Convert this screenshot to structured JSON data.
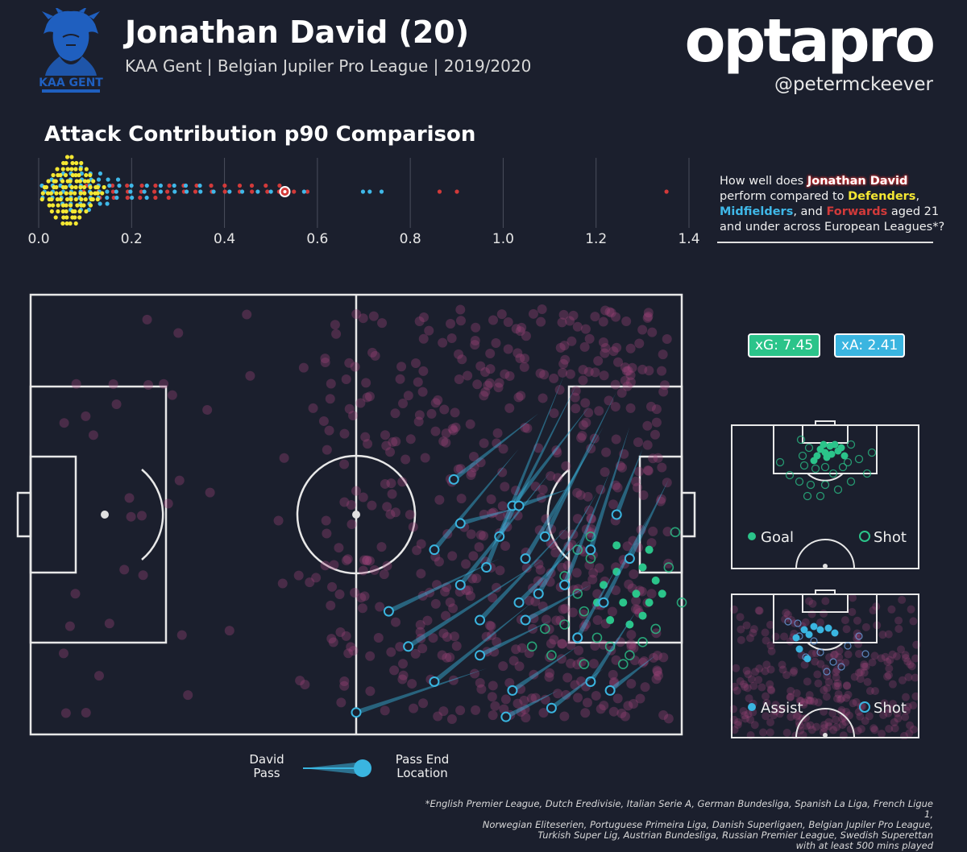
{
  "header": {
    "title": "Jonathan David (20)",
    "subtitle": "KAA Gent  |  Belgian Jupiler Pro League  |  2019/2020",
    "brand": "optapro",
    "handle": "@petermckeever",
    "badge_text": "KAA GENT"
  },
  "section_title": "Attack Contribution p90 Comparison",
  "question": {
    "p1": "How well does ",
    "player": "Jonathan David",
    "p2": " perform compared to ",
    "def": "Defenders",
    "p3": ", ",
    "mid": "Midfielders",
    "p4": ", and ",
    "fwd": "Forwards",
    "p5": "  aged 21 and under across European Leagues*?"
  },
  "stats": {
    "xg": "xG: 7.45",
    "xa": "xA: 2.41"
  },
  "shot_legend": {
    "goal": "Goal",
    "shot": "Shot"
  },
  "assist_legend": {
    "assist": "Assist",
    "shot": "Shot"
  },
  "pass_legend": {
    "left_line1": "David",
    "left_line2": "Pass",
    "right_line1": "Pass End",
    "right_line2": "Location"
  },
  "footnote": [
    "*English Premier League, Dutch Eredivisie, Italian Serie A, German Bundesliga, Spanish La Liga, French Ligue 1,",
    "Norwegian Eliteserien, Portuguese Primeira Liga, Danish Superligaen, Belgian Jupiler Pro League,",
    "Turkish Super Lig, Austrian Bundesliga, Russian Premier League, Swedish Superettan",
    "with at least 500 mins played"
  ],
  "colors": {
    "background": "#1b1f2d",
    "defender": "#f4e733",
    "midfielder": "#3fb8e8",
    "forward": "#d23a3a",
    "goal": "#2bc48a",
    "pass": "#3ab5e0",
    "touch": "#a0457a"
  },
  "chart_data": [
    {
      "type": "scatter",
      "name": "Attack Contribution p90 Comparison",
      "xlim": [
        0,
        1.4
      ],
      "ticks": [
        "0.0",
        "0.2",
        "0.4",
        "0.6",
        "0.8",
        "1.0",
        "1.2",
        "1.4"
      ],
      "tick_values": [
        0,
        0.2,
        0.4,
        0.6,
        0.8,
        1.0,
        1.2,
        1.4
      ],
      "grid": true,
      "series": [
        {
          "name": "Defenders",
          "x": [
            0.01,
            0.02,
            0.03,
            0.04,
            0.05,
            0.06,
            0.07,
            0.08,
            0.09,
            0.1,
            0.11,
            0.12,
            0.13,
            0.14
          ],
          "count": [
            3,
            5,
            7,
            9,
            11,
            12,
            12,
            11,
            10,
            8,
            6,
            4,
            3,
            2
          ]
        },
        {
          "name": "Midfielders",
          "x": [
            0.01,
            0.03,
            0.05,
            0.07,
            0.09,
            0.11,
            0.13,
            0.15,
            0.17,
            0.2,
            0.23,
            0.26,
            0.29,
            0.32,
            0.35,
            0.38,
            0.41,
            0.44,
            0.47,
            0.5,
            0.57,
            0.7,
            0.71,
            0.74
          ],
          "count": [
            3,
            4,
            6,
            7,
            8,
            7,
            6,
            5,
            4,
            3,
            3,
            2,
            2,
            2,
            2,
            1,
            1,
            1,
            1,
            1,
            1,
            1,
            1,
            1
          ]
        },
        {
          "name": "Forwards",
          "x": [
            0.1,
            0.13,
            0.16,
            0.19,
            0.22,
            0.25,
            0.28,
            0.31,
            0.34,
            0.37,
            0.4,
            0.43,
            0.46,
            0.49,
            0.52,
            0.55,
            0.58,
            0.86,
            0.9,
            1.35
          ],
          "count": [
            2,
            3,
            3,
            3,
            3,
            3,
            3,
            2,
            2,
            2,
            2,
            2,
            2,
            2,
            2,
            1,
            1,
            1,
            1,
            1
          ]
        },
        {
          "name": "Jonathan David",
          "x": [
            0.53
          ]
        }
      ]
    },
    {
      "type": "scatter",
      "name": "Touches and passes",
      "pitch": {
        "length": 100,
        "width": 100
      },
      "passes": [
        [
          75,
          35,
          62,
          58
        ],
        [
          78,
          27,
          65,
          42
        ],
        [
          82,
          18,
          70,
          62
        ],
        [
          84,
          20,
          72,
          55
        ],
        [
          86,
          25,
          74,
          48
        ],
        [
          80,
          40,
          66,
          66
        ],
        [
          88,
          30,
          76,
          60
        ],
        [
          90,
          22,
          79,
          55
        ],
        [
          79,
          60,
          58,
          80
        ],
        [
          83,
          52,
          69,
          74
        ],
        [
          85,
          55,
          75,
          70
        ],
        [
          87,
          45,
          78,
          68
        ],
        [
          89,
          40,
          82,
          66
        ],
        [
          92,
          30,
          86,
          58
        ],
        [
          94,
          35,
          90,
          50
        ],
        [
          77,
          70,
          62,
          88
        ],
        [
          95,
          50,
          88,
          70
        ],
        [
          98,
          42,
          92,
          60
        ],
        [
          72,
          60,
          55,
          72
        ],
        [
          70,
          85,
          50,
          95
        ],
        [
          86,
          66,
          76,
          74
        ],
        [
          80,
          74,
          69,
          82
        ],
        [
          84,
          80,
          74,
          90
        ],
        [
          90,
          62,
          84,
          78
        ],
        [
          93,
          72,
          86,
          88
        ],
        [
          81,
          90,
          73,
          96
        ],
        [
          88,
          85,
          80,
          94
        ],
        [
          96,
          82,
          89,
          90
        ],
        [
          76,
          48,
          66,
          52
        ],
        [
          83,
          44,
          75,
          48
        ]
      ],
      "goals": [
        88,
        66,
        90,
        63,
        92,
        60,
        91,
        70,
        93,
        68,
        94,
        62,
        95,
        70,
        96,
        65,
        89,
        74,
        95,
        58,
        97,
        68,
        87,
        70,
        92,
        75,
        94,
        73,
        90,
        57
      ],
      "shots": [
        84,
        68,
        86,
        60,
        85,
        72,
        82,
        75,
        87,
        78,
        89,
        80,
        80,
        82,
        92,
        82,
        96,
        76,
        98,
        62,
        99,
        54,
        86,
        55,
        84,
        58,
        77,
        80,
        79,
        76,
        82,
        64,
        94,
        79,
        91,
        84,
        85,
        84,
        100,
        70
      ],
      "touch_count": 650
    }
  ]
}
